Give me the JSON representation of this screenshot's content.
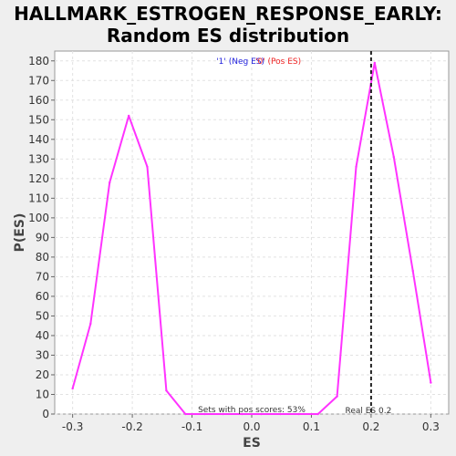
{
  "chart_data": {
    "type": "line",
    "title_line1": "HALLMARK_ESTROGEN_RESPONSE_EARLY:",
    "title_line2": "Random ES distribution",
    "xlabel": "ES",
    "ylabel": "P(ES)",
    "xlim": [
      -0.33,
      0.33
    ],
    "ylim": [
      0,
      185
    ],
    "xticks": [
      -0.3,
      -0.2,
      -0.1,
      0.0,
      0.1,
      0.2,
      0.3
    ],
    "xtick_labels": [
      "-0.3",
      "-0.2",
      "-0.1",
      "0.0",
      "0.1",
      "0.2",
      "0.3"
    ],
    "yticks": [
      0,
      10,
      20,
      30,
      40,
      50,
      60,
      70,
      80,
      90,
      100,
      110,
      120,
      130,
      140,
      150,
      160,
      170,
      180
    ],
    "grid": true,
    "series": [
      {
        "color": "#ff33ff",
        "x": [
          -0.3,
          -0.27,
          -0.238,
          -0.206,
          -0.175,
          -0.143,
          -0.111,
          -0.079,
          -0.048,
          -0.016,
          0.016,
          0.048,
          0.079,
          0.111,
          0.143,
          0.175,
          0.206,
          0.238,
          0.27,
          0.3
        ],
        "values": [
          13,
          46,
          118,
          152,
          126,
          12,
          0,
          0,
          0,
          0,
          0,
          0,
          0,
          0,
          9,
          126,
          179,
          131,
          73,
          16
        ]
      }
    ],
    "real_es": 0.2,
    "legend": {
      "neg_label": "'1' (Neg ES)",
      "pos_label": "'0' (Pos ES)",
      "neg_color": "#2222dd",
      "pos_color": "#ee2222"
    },
    "annotations": {
      "pos_scores": "Sets with pos scores: 53%",
      "real_es": "Real ES 0.2"
    }
  }
}
